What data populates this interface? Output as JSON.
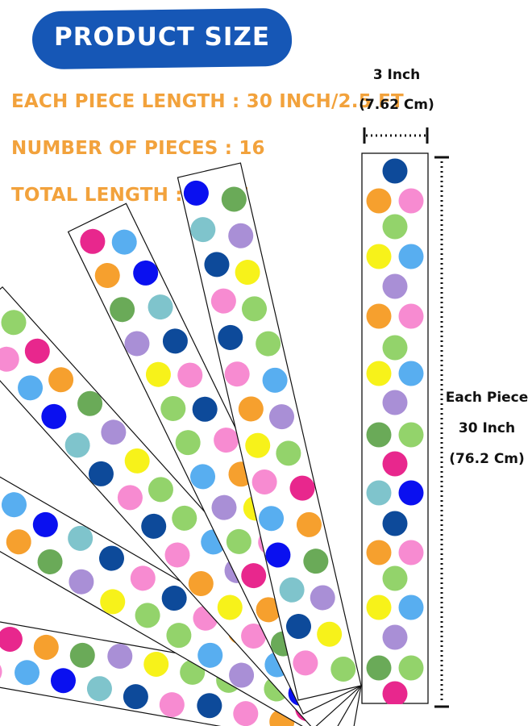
{
  "header": {
    "title": "PRODUCT SIZE",
    "banner_color": "#1657b6"
  },
  "specs": {
    "piece_length": "EACH PIECE LENGTH : 30 INCH/2.5 FT",
    "number_of_pieces": "NUMBER OF PIECES : 16",
    "total_length": "TOTAL LENGTH : 40 FT",
    "text_color": "#f2a23c"
  },
  "dimensions": {
    "width_inch": "3 Inch",
    "width_cm": "(7.62 Cm)",
    "length_label": "Each Piece",
    "length_inch": "30 Inch",
    "length_cm": "(76.2 Cm)"
  },
  "product": {
    "strip_count_shown": 5,
    "dot_colors": [
      "#0d4a9a",
      "#f6a02e",
      "#f78bd1",
      "#93d36b",
      "#58aef0",
      "#f7f21a",
      "#a98fd6",
      "#e8278d",
      "#6aaa58",
      "#7fc4cc",
      "#0a10f0"
    ]
  }
}
